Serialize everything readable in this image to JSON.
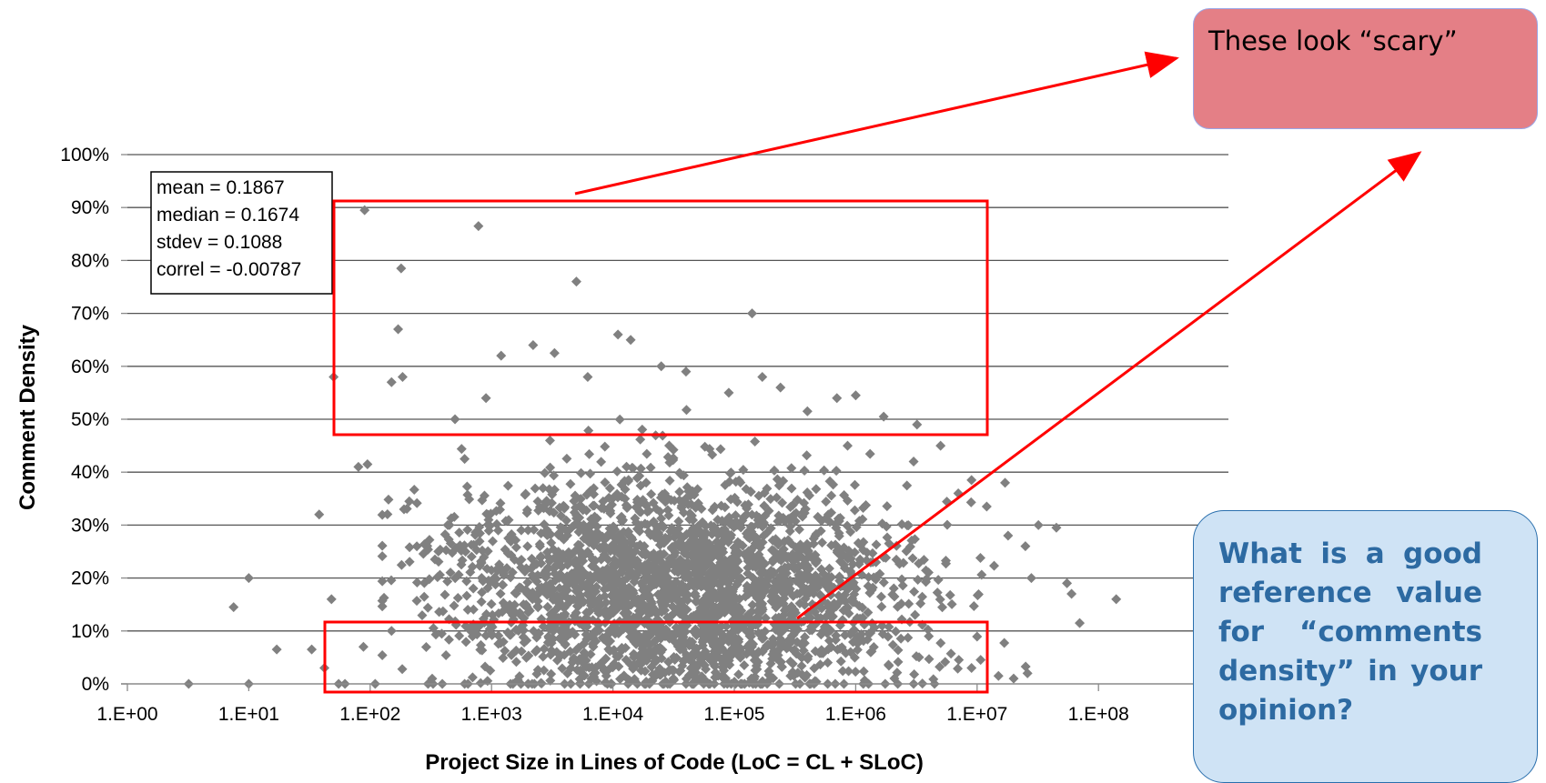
{
  "chart_data": {
    "type": "scatter",
    "xlabel": "Project Size in Lines of Code (LoC = CL + SLoC)",
    "ylabel": "Comment Density",
    "x_scale": "log",
    "xlim": [
      1,
      1000000000
    ],
    "ylim": [
      0,
      1
    ],
    "xticks": [
      "1.E+00",
      "1.E+01",
      "1.E+02",
      "1.E+03",
      "1.E+04",
      "1.E+05",
      "1.E+06",
      "1.E+07",
      "1.E+08"
    ],
    "yticks": [
      "0%",
      "10%",
      "20%",
      "30%",
      "40%",
      "50%",
      "60%",
      "70%",
      "80%",
      "90%",
      "100%"
    ],
    "grid": "horizontal",
    "marker_color": "#808080",
    "stats": [
      "mean = 0.1867",
      "median = 0.1674",
      "stdev = 0.1088",
      "correl = -0.00787"
    ],
    "points": [
      [
        3.2,
        0.0
      ],
      [
        10,
        0.0
      ],
      [
        7.5,
        0.145
      ],
      [
        10,
        0.2
      ],
      [
        17,
        0.065
      ],
      [
        33,
        0.065
      ],
      [
        38,
        0.32
      ],
      [
        42,
        0.03
      ],
      [
        48,
        0.16
      ],
      [
        50,
        0.58
      ],
      [
        55,
        0.0
      ],
      [
        62,
        0.0
      ],
      [
        88,
        0.07
      ],
      [
        90,
        0.895
      ],
      [
        80,
        0.41
      ],
      [
        95,
        0.415
      ],
      [
        110,
        0.0
      ],
      [
        150,
        0.57
      ],
      [
        170,
        0.67
      ],
      [
        180,
        0.785
      ],
      [
        185,
        0.58
      ],
      [
        190,
        0.33
      ],
      [
        210,
        0.345
      ],
      [
        330,
        0.0
      ],
      [
        450,
        0.3
      ],
      [
        500,
        0.5
      ],
      [
        600,
        0.425
      ],
      [
        780,
        0.865
      ],
      [
        900,
        0.54
      ],
      [
        1200,
        0.62
      ],
      [
        2200,
        0.64
      ],
      [
        3300,
        0.625
      ],
      [
        5000,
        0.76
      ],
      [
        6200,
        0.58
      ],
      [
        9000,
        0.0
      ],
      [
        11000,
        0.66
      ],
      [
        14000,
        0.65
      ],
      [
        20000,
        0.0
      ],
      [
        25000,
        0.6
      ],
      [
        40000,
        0.59
      ],
      [
        90000,
        0.55
      ],
      [
        140000,
        0.7
      ],
      [
        170000,
        0.58
      ],
      [
        240000,
        0.56
      ],
      [
        400000,
        0.515
      ],
      [
        700000,
        0.54
      ],
      [
        1000000,
        0.545
      ],
      [
        1700000,
        0.505
      ],
      [
        3200000,
        0.49
      ],
      [
        5000000,
        0.45
      ],
      [
        3000000,
        0.42
      ],
      [
        7000000,
        0.36
      ],
      [
        9000000,
        0.385
      ],
      [
        12000000,
        0.335
      ],
      [
        17000000,
        0.38
      ],
      [
        25000000,
        0.26
      ],
      [
        18000000,
        0.28
      ],
      [
        32000000,
        0.3
      ],
      [
        45000000,
        0.295
      ],
      [
        55000000,
        0.19
      ],
      [
        60000000,
        0.17
      ],
      [
        28000000,
        0.2
      ],
      [
        70000000,
        0.115
      ],
      [
        140000000,
        0.16
      ],
      [
        15000000,
        0.015
      ],
      [
        20000000,
        0.01
      ],
      [
        26000000,
        0.02
      ],
      [
        4000000,
        0.09
      ],
      [
        300,
        0.0
      ],
      [
        600,
        0.0
      ],
      [
        1500,
        0.0
      ],
      [
        4000,
        0.0
      ],
      [
        40000,
        0.0
      ],
      [
        150000,
        0.0
      ],
      [
        800000,
        0.0
      ],
      [
        3000000,
        0.0
      ],
      [
        9000000,
        0.03
      ],
      [
        700,
        0.1
      ],
      [
        150,
        0.1
      ]
    ]
  },
  "annotations": {
    "scary_label": "These look “scary”",
    "question_label": "What is a good reference value for “comments density” in your opinion?"
  }
}
